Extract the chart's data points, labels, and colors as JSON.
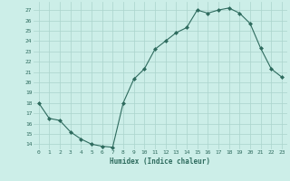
{
  "x": [
    0,
    1,
    2,
    3,
    4,
    5,
    6,
    7,
    8,
    9,
    10,
    11,
    12,
    13,
    14,
    15,
    16,
    17,
    18,
    19,
    20,
    21,
    22,
    23
  ],
  "y": [
    18,
    16.5,
    16.3,
    15.2,
    14.5,
    14.0,
    13.8,
    13.7,
    18.0,
    20.3,
    21.3,
    23.2,
    24.0,
    24.8,
    25.3,
    27.0,
    26.7,
    27.0,
    27.2,
    26.7,
    25.7,
    23.3,
    21.3,
    20.5
  ],
  "xlim": [
    -0.5,
    23.5
  ],
  "ylim": [
    13.5,
    27.8
  ],
  "yticks": [
    14,
    15,
    16,
    17,
    18,
    19,
    20,
    21,
    22,
    23,
    24,
    25,
    26,
    27
  ],
  "xticks": [
    0,
    1,
    2,
    3,
    4,
    5,
    6,
    7,
    8,
    9,
    10,
    11,
    12,
    13,
    14,
    15,
    16,
    17,
    18,
    19,
    20,
    21,
    22,
    23
  ],
  "xlabel": "Humidex (Indice chaleur)",
  "line_color": "#2e6b5e",
  "marker": "D",
  "marker_size": 2.0,
  "bg_color": "#cceee8",
  "grid_color": "#aad4cc",
  "tick_color": "#2e6b5e",
  "label_color": "#2e6b5e",
  "font_family": "monospace"
}
